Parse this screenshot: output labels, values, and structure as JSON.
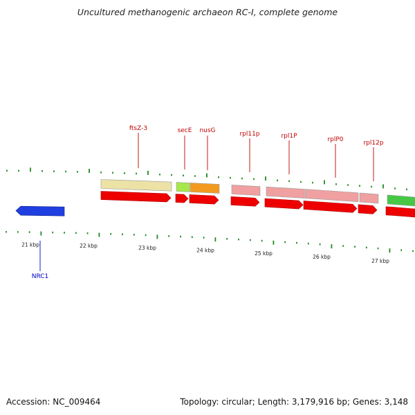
{
  "title": "Uncultured methanogenic archaeon RC-I, complete genome",
  "accession_text": "Accession: NC_009464",
  "stats_text": "Topology: circular; Length: 3,179,916 bp; Genes: 3,148",
  "colors": {
    "cds_red": "#ee0000",
    "backbone_gray": "#8a8a8a",
    "tick_green": "#1e8a1e",
    "label_red": "#c00000",
    "label_blue": "#0000c8",
    "ftsZ3": "#ece2a6",
    "secE": "#a6e84a",
    "nusG": "#f39a1e",
    "ribosomal": "#f0a0a0",
    "green_gene": "#46c846",
    "blue_gene": "#1f3fe0"
  },
  "scale_labels": [
    "21 kbp",
    "22 kbp",
    "23 kbp",
    "24 kbp",
    "25 kbp",
    "26 kbp",
    "27 kbp"
  ],
  "gene_labels": [
    {
      "name": "ftsZ-3"
    },
    {
      "name": "secE"
    },
    {
      "name": "nusG"
    },
    {
      "name": "rpl11p"
    },
    {
      "name": "rpl1P"
    },
    {
      "name": "rplP0"
    },
    {
      "name": "rpl12p"
    },
    {
      "name": "NRC1"
    }
  ]
}
